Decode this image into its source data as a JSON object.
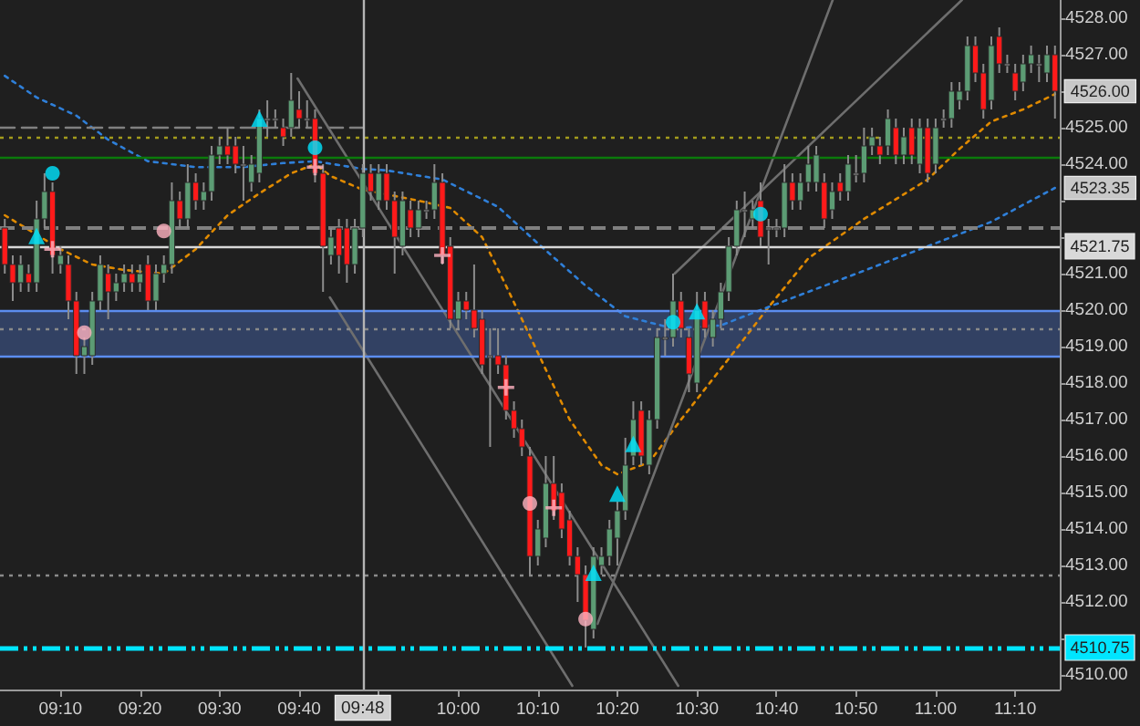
{
  "chart_data": {
    "type": "candlestick",
    "x": [
      9.05,
      9.0667,
      9.0833,
      9.1,
      9.1167,
      9.1333,
      9.15,
      9.1667,
      9.1833,
      9.2,
      9.2167,
      9.2333,
      9.25,
      9.2667,
      9.2833,
      9.3,
      9.3167,
      9.3333,
      9.35,
      9.3667,
      9.3833,
      9.4,
      9.4167,
      9.4333,
      9.45,
      9.4667,
      9.4833,
      9.5,
      9.5167,
      9.5333,
      9.55,
      9.5667,
      9.5833,
      9.6,
      9.6167,
      9.6333,
      9.65,
      9.6667,
      9.6833,
      9.7,
      9.7167,
      9.7333,
      9.75,
      9.7667,
      9.7833,
      9.8,
      9.8167,
      9.8333,
      9.85,
      9.8667,
      9.8833,
      9.9,
      9.9167,
      9.9333,
      9.95,
      9.9667,
      9.9833,
      10,
      10.0167,
      10.0333,
      10.05,
      10.0667,
      10.0833,
      10.1,
      10.1167,
      10.1333,
      10.15,
      10.1667,
      10.1833,
      10.2,
      10.2167,
      10.2333,
      10.25,
      10.2667,
      10.2833,
      10.3,
      10.3167,
      10.3333,
      10.35,
      10.3667,
      10.3833,
      10.4,
      10.4167,
      10.4333,
      10.45,
      10.4667,
      10.4833,
      10.5,
      10.5167,
      10.5333,
      10.55,
      10.5667,
      10.5833,
      10.6,
      10.6167,
      10.6333,
      10.65,
      10.6667,
      10.6833,
      10.7,
      10.7167,
      10.7333,
      10.75,
      10.7667,
      10.7833,
      10.8,
      10.8167,
      10.8333,
      10.85,
      10.8667,
      10.8833,
      10.9,
      10.9167,
      10.9333,
      10.95,
      10.9667,
      10.9833,
      11,
      11.0167,
      11.0333,
      11.05,
      11.0667,
      11.0833,
      11.1,
      11.1167,
      11.1333,
      11.15,
      11.1667,
      11.1833,
      11.2,
      11.2167,
      11.2333,
      11.25
    ],
    "ohlc": [
      [
        4522.25,
        4522.5,
        4521.0,
        4521.25
      ],
      [
        4521.25,
        4521.5,
        4520.25,
        4520.75
      ],
      [
        4520.75,
        4521.5,
        4520.5,
        4521.25
      ],
      [
        4521.0,
        4521.25,
        4520.5,
        4520.75
      ],
      [
        4520.75,
        4523.0,
        4520.5,
        4522.5
      ],
      [
        4522.5,
        4523.75,
        4522.25,
        4523.25
      ],
      [
        4523.25,
        4523.5,
        4521.0,
        4521.5
      ],
      [
        4521.25,
        4521.75,
        4521.0,
        4521.5
      ],
      [
        4521.25,
        4521.5,
        4519.75,
        4520.25
      ],
      [
        4520.25,
        4520.5,
        4518.25,
        4518.75
      ],
      [
        4518.75,
        4519.25,
        4518.25,
        4519.0
      ],
      [
        4518.75,
        4520.5,
        4518.5,
        4520.25
      ],
      [
        4520.25,
        4521.5,
        4520.0,
        4521.25
      ],
      [
        4521.0,
        4521.25,
        4519.75,
        4520.5
      ],
      [
        4520.5,
        4521.0,
        4520.25,
        4520.75
      ],
      [
        4520.75,
        4521.25,
        4520.5,
        4521.0
      ],
      [
        4521.0,
        4521.25,
        4520.5,
        4520.75
      ],
      [
        4520.75,
        4521.25,
        4520.5,
        4521.0
      ],
      [
        4521.25,
        4521.5,
        4520.0,
        4520.25
      ],
      [
        4520.25,
        4521.25,
        4520.0,
        4521.0
      ],
      [
        4521.0,
        4521.5,
        4520.75,
        4521.25
      ],
      [
        4521.25,
        4523.5,
        4521.0,
        4523.0
      ],
      [
        4523.0,
        4523.25,
        4522.25,
        4522.5
      ],
      [
        4522.5,
        4524.0,
        4522.25,
        4523.5
      ],
      [
        4523.5,
        4523.75,
        4522.75,
        4523.0
      ],
      [
        4523.0,
        4523.5,
        4522.75,
        4523.25
      ],
      [
        4523.25,
        4524.5,
        4523.0,
        4524.25
      ],
      [
        4524.25,
        4524.75,
        4524.0,
        4524.5
      ],
      [
        4524.5,
        4525.0,
        4524.0,
        4524.25
      ],
      [
        4524.5,
        4524.75,
        4523.75,
        4524.0
      ],
      [
        4524.0,
        4524.5,
        4523.0,
        4524.0
      ],
      [
        4523.5,
        4524.25,
        4523.25,
        4524.0
      ],
      [
        4523.75,
        4525.5,
        4523.5,
        4525.25
      ],
      [
        4525.25,
        4525.75,
        4524.75,
        4525.25
      ],
      [
        4525.25,
        4525.5,
        4525.0,
        4525.25
      ],
      [
        4525.0,
        4525.25,
        4524.5,
        4524.75
      ],
      [
        4525.0,
        4526.5,
        4524.75,
        4525.75
      ],
      [
        4525.5,
        4526.0,
        4525.0,
        4525.25
      ],
      [
        4525.25,
        4525.75,
        4525.0,
        4525.25
      ],
      [
        4525.25,
        4525.5,
        4523.5,
        4523.75
      ],
      [
        4523.75,
        4524.0,
        4520.5,
        4521.75
      ],
      [
        4521.5,
        4522.25,
        4521.25,
        4522.0
      ],
      [
        4522.25,
        4522.5,
        4521.0,
        4521.5
      ],
      [
        4522.25,
        4522.5,
        4520.75,
        4521.25
      ],
      [
        4521.25,
        4522.5,
        4521.0,
        4522.25
      ],
      [
        4522.25,
        4524.0,
        4522.0,
        4523.75
      ],
      [
        4523.75,
        4524.0,
        4523.0,
        4523.25
      ],
      [
        4523.0,
        4524.0,
        4522.75,
        4523.75
      ],
      [
        4523.75,
        4524.0,
        4522.75,
        4523.0
      ],
      [
        4523.0,
        4523.25,
        4521.0,
        4522.0
      ],
      [
        4521.75,
        4523.25,
        4521.5,
        4523.0
      ],
      [
        4522.75,
        4523.0,
        4522.0,
        4522.25
      ],
      [
        4522.25,
        4523.0,
        4522.0,
        4522.75
      ],
      [
        4522.75,
        4523.0,
        4522.5,
        4522.75
      ],
      [
        4522.75,
        4524.0,
        4522.5,
        4523.5
      ],
      [
        4523.5,
        4523.75,
        4521.25,
        4521.5
      ],
      [
        4521.75,
        4522.0,
        4519.5,
        4519.75
      ],
      [
        4519.75,
        4520.5,
        4519.5,
        4520.25
      ],
      [
        4520.25,
        4520.5,
        4519.75,
        4520.0
      ],
      [
        4520.0,
        4521.25,
        4519.25,
        4519.5
      ],
      [
        4519.75,
        4520.0,
        4518.25,
        4518.5
      ],
      [
        4518.75,
        4519.5,
        4516.25,
        4518.75
      ],
      [
        4518.75,
        4519.5,
        4518.25,
        4518.5
      ],
      [
        4518.5,
        4518.75,
        4517.0,
        4517.25
      ],
      [
        4517.25,
        4517.5,
        4516.5,
        4516.75
      ],
      [
        4516.75,
        4517.0,
        4516.0,
        4516.25
      ],
      [
        4516.0,
        4516.25,
        4512.75,
        4513.25
      ],
      [
        4513.25,
        4514.25,
        4513.0,
        4514.0
      ],
      [
        4513.75,
        4516.0,
        4513.5,
        4515.25
      ],
      [
        4515.25,
        4516.0,
        4514.25,
        4514.5
      ],
      [
        4515.0,
        4515.25,
        4513.75,
        4514.0
      ],
      [
        4514.25,
        4514.5,
        4513.0,
        4513.25
      ],
      [
        4513.25,
        4513.5,
        4512.0,
        4512.75
      ],
      [
        4512.75,
        4513.0,
        4510.75,
        4511.5
      ],
      [
        4511.25,
        4513.5,
        4511.0,
        4513.25
      ],
      [
        4513.0,
        4513.5,
        4512.75,
        4513.25
      ],
      [
        4513.25,
        4514.25,
        4513.0,
        4514.0
      ],
      [
        4513.75,
        4514.75,
        4513.0,
        4514.5
      ],
      [
        4514.5,
        4516.5,
        4514.25,
        4515.75
      ],
      [
        4516.0,
        4517.5,
        4515.75,
        4517.0
      ],
      [
        4517.25,
        4517.5,
        4515.75,
        4516.0
      ],
      [
        4515.75,
        4517.25,
        4515.5,
        4517.0
      ],
      [
        4517.0,
        4519.5,
        4516.75,
        4519.25
      ],
      [
        4519.25,
        4519.75,
        4518.75,
        4519.25
      ],
      [
        4519.25,
        4521.0,
        4519.0,
        4520.25
      ],
      [
        4520.25,
        4520.5,
        4519.25,
        4519.5
      ],
      [
        4519.25,
        4519.5,
        4517.75,
        4518.25
      ],
      [
        4518.0,
        4520.5,
        4517.75,
        4520.0
      ],
      [
        4520.25,
        4520.5,
        4519.25,
        4519.5
      ],
      [
        4519.25,
        4520.0,
        4519.0,
        4519.75
      ],
      [
        4519.75,
        4520.75,
        4519.5,
        4520.5
      ],
      [
        4520.5,
        4522.0,
        4520.25,
        4521.75
      ],
      [
        4521.75,
        4523.0,
        4521.5,
        4522.75
      ],
      [
        4522.75,
        4523.25,
        4522.0,
        4522.75
      ],
      [
        4522.5,
        4523.0,
        4522.25,
        4522.75
      ],
      [
        4523.0,
        4523.5,
        4521.75,
        4522.0
      ],
      [
        4522.25,
        4522.5,
        4521.25,
        4522.25
      ],
      [
        4522.25,
        4522.5,
        4522.0,
        4522.25
      ],
      [
        4522.25,
        4524.0,
        4522.0,
        4523.5
      ],
      [
        4523.5,
        4523.75,
        4522.75,
        4523.0
      ],
      [
        4523.0,
        4523.75,
        4522.75,
        4523.5
      ],
      [
        4523.5,
        4524.5,
        4523.25,
        4524.0
      ],
      [
        4523.5,
        4524.5,
        4523.25,
        4524.25
      ],
      [
        4523.5,
        4523.75,
        4522.25,
        4522.5
      ],
      [
        4522.75,
        4523.5,
        4522.5,
        4523.25
      ],
      [
        4523.5,
        4523.75,
        4523.0,
        4523.25
      ],
      [
        4523.25,
        4524.25,
        4523.0,
        4524.0
      ],
      [
        4523.75,
        4524.25,
        4523.5,
        4523.75
      ],
      [
        4523.75,
        4525.0,
        4523.5,
        4524.5
      ],
      [
        4524.5,
        4525.0,
        4524.25,
        4524.75
      ],
      [
        4524.5,
        4524.75,
        4524.0,
        4524.25
      ],
      [
        4524.5,
        4525.5,
        4524.25,
        4525.25
      ],
      [
        4525.0,
        4525.25,
        4524.0,
        4524.25
      ],
      [
        4524.25,
        4525.0,
        4524.0,
        4524.75
      ],
      [
        4525.0,
        4525.25,
        4524.0,
        4524.25
      ],
      [
        4524.0,
        4525.25,
        4523.75,
        4525.0
      ],
      [
        4525.0,
        4525.25,
        4523.5,
        4523.75
      ],
      [
        4524.0,
        4525.25,
        4523.75,
        4525.0
      ],
      [
        4525.25,
        4525.5,
        4525.0,
        4525.25
      ],
      [
        4525.25,
        4526.25,
        4525.0,
        4526.0
      ],
      [
        4525.75,
        4526.25,
        4525.5,
        4526.0
      ],
      [
        4526.0,
        4527.5,
        4525.75,
        4527.25
      ],
      [
        4527.25,
        4527.5,
        4526.25,
        4526.5
      ],
      [
        4526.5,
        4526.75,
        4525.25,
        4525.5
      ],
      [
        4525.75,
        4527.5,
        4525.5,
        4527.25
      ],
      [
        4527.5,
        4527.75,
        4526.5,
        4526.75
      ],
      [
        4526.75,
        4527.0,
        4526.5,
        4526.75
      ],
      [
        4526.5,
        4526.75,
        4525.75,
        4526.0
      ],
      [
        4526.25,
        4527.0,
        4526.0,
        4526.75
      ],
      [
        4526.75,
        4527.25,
        4526.5,
        4527.0
      ],
      [
        4526.75,
        4527.0,
        4526.25,
        4526.75
      ],
      [
        4526.5,
        4527.25,
        4526.25,
        4527.0
      ],
      [
        4527.0,
        4527.25,
        4525.25,
        4526.0
      ]
    ],
    "series": [
      {
        "type": "line",
        "color": "#e08a00",
        "line_style": "dotted",
        "marker": "none",
        "x": [
          9.05,
          9.1667,
          9.2333,
          9.3,
          9.3833,
          9.45,
          9.5167,
          9.5833,
          9.65,
          9.7,
          9.7333,
          9.8,
          9.9167,
          9.9833,
          10.05,
          10.1,
          10.1667,
          10.2333,
          10.3,
          10.3333,
          10.4,
          10.4667,
          10.5667,
          10.65,
          10.7333,
          10.85,
          10.9833,
          11.05,
          11.1167,
          11.1833,
          11.25
        ],
        "values": [
          4522.6,
          4521.67,
          4521.25,
          4521.1,
          4521.0,
          4521.67,
          4522.6,
          4523.2,
          4523.75,
          4524.0,
          4523.67,
          4523.3,
          4523.0,
          4522.8,
          4522.0,
          4520.67,
          4518.83,
          4517.0,
          4515.75,
          4515.5,
          4515.83,
          4517.0,
          4518.67,
          4520.08,
          4521.42,
          4522.5,
          4523.58,
          4524.42,
          4525.17,
          4525.5,
          4525.92
        ]
      },
      {
        "type": "line",
        "color": "#2f7fd8",
        "line_style": "dotted",
        "marker": "none",
        "x": [
          9.05,
          9.1167,
          9.2,
          9.2667,
          9.35,
          9.45,
          9.55,
          9.6333,
          9.7,
          9.8,
          9.85,
          9.9667,
          10.0833,
          10.1667,
          10.2667,
          10.35,
          10.45,
          10.55,
          10.6167,
          10.7333,
          10.85,
          10.9833,
          11.1167,
          11.25
        ],
        "values": [
          4526.42,
          4525.83,
          4525.33,
          4524.67,
          4524.08,
          4523.92,
          4523.92,
          4524.03,
          4524.08,
          4523.87,
          4523.83,
          4523.58,
          4522.83,
          4521.83,
          4520.67,
          4519.83,
          4519.5,
          4519.58,
          4519.92,
          4520.5,
          4521.08,
          4521.75,
          4522.42,
          4523.35
        ],
        "value_labels": [
          null,
          null,
          null,
          null,
          null,
          null,
          null,
          null,
          null,
          null,
          null,
          null,
          null,
          null,
          null,
          null,
          null,
          null,
          null,
          null,
          null,
          null,
          null,
          "4523.35"
        ]
      },
      {
        "type": "line",
        "color": "#808080",
        "line_style": "dashed",
        "marker": "none",
        "x": [
          9.04,
          9.8
        ],
        "values": [
          4525.0,
          4525.0
        ]
      },
      {
        "type": "line",
        "color": "#6e6e6e",
        "line_style": "solid",
        "marker": "none",
        "x": [
          9.6633,
          10.4608
        ],
        "values": [
          4526.35,
          4509.7
        ]
      },
      {
        "type": "line",
        "color": "#6e6e6e",
        "line_style": "solid",
        "marker": "none",
        "x": [
          9.731,
          10.2389
        ],
        "values": [
          4520.35,
          4509.7
        ]
      },
      {
        "type": "line",
        "color": "#6e6e6e",
        "line_style": "solid",
        "marker": "none",
        "x": [
          10.2917,
          10.7843
        ],
        "values": [
          4511.4,
          4528.5
        ]
      },
      {
        "type": "line",
        "color": "#6e6e6e",
        "line_style": "solid",
        "marker": "none",
        "x": [
          10.4533,
          11.055
        ],
        "values": [
          4521.0,
          4528.5
        ]
      },
      {
        "type": "scatter",
        "color": "#00e5ff",
        "marker": "circle",
        "x": [
          9.15,
          9.7,
          10.45,
          10.6333
        ],
        "values": [
          4523.75,
          4524.45,
          4519.67,
          4522.63
        ]
      },
      {
        "type": "scatter",
        "color": "#ffb3c1",
        "marker": "circle",
        "x": [
          9.2167,
          9.3833,
          10.15,
          10.2667
        ],
        "values": [
          4519.38,
          4522.17,
          4514.7,
          4511.53
        ]
      },
      {
        "type": "scatter",
        "color": "#00e5ff",
        "marker": "triangle",
        "x": [
          9.1167,
          9.5833,
          10.2833,
          10.3333,
          10.3667,
          10.5
        ],
        "values": [
          4522.03,
          4525.25,
          4512.8,
          4514.97,
          4516.33,
          4519.97
        ]
      },
      {
        "type": "scatter",
        "color": "#ffb3c1",
        "marker": "cross",
        "x": [
          9.15,
          9.7,
          9.9667,
          10.1,
          10.2
        ],
        "values": [
          4521.67,
          4523.92,
          4521.5,
          4517.88,
          4514.58
        ]
      }
    ],
    "xlim": [
      9.04,
      11.26
    ],
    "xticks": [
      {
        "value": 9.1667,
        "label": "09:10"
      },
      {
        "value": 9.3333,
        "label": "09:20"
      },
      {
        "value": 9.5,
        "label": "09:30"
      },
      {
        "value": 9.6667,
        "label": "09:40"
      },
      {
        "value": 9.8333,
        "label": null
      },
      {
        "value": 10.0,
        "label": "10:00"
      },
      {
        "value": 10.1667,
        "label": "10:10"
      },
      {
        "value": 10.3333,
        "label": "10:20"
      },
      {
        "value": 10.5,
        "label": "10:30"
      },
      {
        "value": 10.6667,
        "label": "10:40"
      },
      {
        "value": 10.8333,
        "label": "10:50"
      },
      {
        "value": 11.0,
        "label": "11:00"
      },
      {
        "value": 11.1667,
        "label": "11:10"
      }
    ],
    "ylim": [
      4509.6,
      4528.5
    ],
    "yticks": [
      {
        "value": 4510,
        "label": "4510.00"
      },
      {
        "value": 4511,
        "label": null
      },
      {
        "value": 4512,
        "label": "4512.00"
      },
      {
        "value": 4513,
        "label": "4513.00"
      },
      {
        "value": 4514,
        "label": "4514.00"
      },
      {
        "value": 4515,
        "label": "4515.00"
      },
      {
        "value": 4516,
        "label": "4516.00"
      },
      {
        "value": 4517,
        "label": "4517.00"
      },
      {
        "value": 4518,
        "label": "4518.00"
      },
      {
        "value": 4519,
        "label": "4519.00"
      },
      {
        "value": 4520,
        "label": "4520.00"
      },
      {
        "value": 4521,
        "label": "4521.00"
      },
      {
        "value": 4522,
        "label": null
      },
      {
        "value": 4523,
        "label": null
      },
      {
        "value": 4524,
        "label": "4524.00"
      },
      {
        "value": 4525,
        "label": "4525.00"
      },
      {
        "value": 4526,
        "label": null
      },
      {
        "value": 4527,
        "label": "4527.00"
      },
      {
        "value": 4528,
        "label": "4528.00"
      }
    ],
    "ref_lines": [
      {
        "axis": "y",
        "value": 4524.75,
        "color": "#a39b1c",
        "line_style": "dotted"
      },
      {
        "axis": "y",
        "value": 4524.2,
        "color": "#0b7a0b",
        "line_style": "solid"
      },
      {
        "axis": "y",
        "value": 4522.25,
        "color": "#808080",
        "line_style": "dashed"
      },
      {
        "axis": "y",
        "value": 4521.75,
        "label": "4521.75",
        "color": "#d9d9d9",
        "line_style": "solid"
      },
      {
        "axis": "y",
        "value": 4520.0,
        "color": "#5b8def",
        "line_style": "solid"
      },
      {
        "axis": "y",
        "value": 4519.5,
        "color": "#8a8a8a",
        "line_style": "dotted"
      },
      {
        "axis": "y",
        "value": 4518.75,
        "color": "#5b8def",
        "line_style": "solid"
      },
      {
        "axis": "y",
        "value": 4512.75,
        "color": "#8a8a8a",
        "line_style": "dotted"
      },
      {
        "axis": "y",
        "value": 4510.75,
        "label": "4510.75",
        "color": "#00e5ff",
        "line_style": "dashdot"
      },
      {
        "axis": "x",
        "value": 9.8,
        "color": "#b4b4b4",
        "line_style": "solid"
      }
    ],
    "bands": [
      {
        "axis": "y",
        "from": 4518.75,
        "to": 4520.0,
        "color": "#34456a"
      }
    ],
    "annotations": [
      {
        "text": "09:48",
        "x": 9.8
      }
    ],
    "value_labels": [
      null,
      null,
      null,
      null,
      null,
      null,
      null,
      null,
      null,
      null,
      null,
      null,
      null,
      null,
      null,
      null,
      null,
      null,
      null,
      null,
      null,
      null,
      null,
      null,
      null,
      null,
      null,
      null,
      null,
      null,
      null,
      null,
      null,
      null,
      null,
      null,
      null,
      null,
      null,
      null,
      null,
      null,
      null,
      null,
      null,
      null,
      null,
      null,
      null,
      null,
      null,
      null,
      null,
      null,
      null,
      null,
      null,
      null,
      null,
      null,
      null,
      null,
      null,
      null,
      null,
      null,
      null,
      null,
      null,
      null,
      null,
      null,
      null,
      null,
      null,
      null,
      null,
      null,
      null,
      null,
      null,
      null,
      null,
      null,
      null,
      null,
      null,
      null,
      null,
      null,
      null,
      null,
      null,
      null,
      null,
      null,
      null,
      null,
      null,
      null,
      null,
      null,
      null,
      null,
      null,
      null,
      null,
      null,
      null,
      null,
      null,
      null,
      null,
      null,
      null,
      null,
      null,
      null,
      null,
      null,
      null,
      null,
      null,
      null,
      null,
      null,
      null,
      null,
      null,
      null,
      null,
      null,
      "4526.00"
    ],
    "grid": false,
    "legend": false
  }
}
